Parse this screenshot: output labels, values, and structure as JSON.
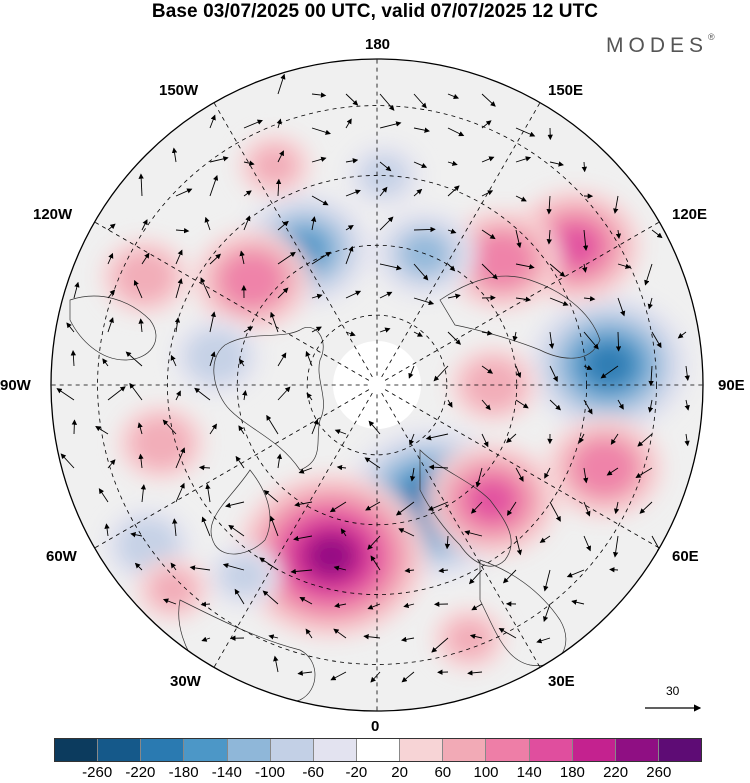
{
  "title": "Base 03/07/2025 00 UTC, valid 07/07/2025 12 UTC",
  "brand": {
    "name": "MODES",
    "mark": "®"
  },
  "map": {
    "projection": "north polar stereographic",
    "longitude_labels": {
      "lon_180": "180",
      "lon_150e": "150E",
      "lon_120e": "120E",
      "lon_90e": "90E",
      "lon_60e": "60E",
      "lon_30e": "30E",
      "lon_0": "0",
      "lon_30w": "30W",
      "lon_60w": "60W",
      "lon_90w": "90W",
      "lon_120w": "120W",
      "lon_150w": "150W"
    },
    "reference_vector_label": "30"
  },
  "colorbar": {
    "colors": [
      "#0c3b5e",
      "#15598a",
      "#2a7ab1",
      "#4c97c7",
      "#8fb7d9",
      "#c3d0e6",
      "#e3e3f0",
      "#ffffff",
      "#f7d4d6",
      "#f2aab6",
      "#ee7ea7",
      "#e04e9e",
      "#c4228f",
      "#8f0f83",
      "#5e0c75"
    ],
    "tick_labels": [
      "-260",
      "-220",
      "-180",
      "-140",
      "-100",
      "-60",
      "-20",
      "20",
      "60",
      "100",
      "140",
      "180",
      "220",
      "260"
    ]
  },
  "anomalies": [
    {
      "lon": 25,
      "lat": 62,
      "value": -200
    },
    {
      "lon": -15,
      "lat": 52,
      "value": 220
    },
    {
      "lon": 45,
      "lat": 55,
      "value": 140
    },
    {
      "lon": 95,
      "lat": 40,
      "value": -180
    },
    {
      "lon": 70,
      "lat": 38,
      "value": 120
    },
    {
      "lon": 125,
      "lat": 38,
      "value": 140
    },
    {
      "lon": 135,
      "lat": 52,
      "value": 120
    },
    {
      "lon": 160,
      "lat": 60,
      "value": -100
    },
    {
      "lon": 178,
      "lat": 45,
      "value": -60
    },
    {
      "lon": -152,
      "lat": 57,
      "value": -140
    },
    {
      "lon": -130,
      "lat": 55,
      "value": 120
    },
    {
      "lon": -115,
      "lat": 35,
      "value": 80
    },
    {
      "lon": -100,
      "lat": 55,
      "value": -80
    },
    {
      "lon": -75,
      "lat": 42,
      "value": 80
    },
    {
      "lon": -55,
      "lat": 30,
      "value": -80
    },
    {
      "lon": 90,
      "lat": 65,
      "value": 80
    },
    {
      "lon": -155,
      "lat": 38,
      "value": 60
    },
    {
      "lon": -35,
      "lat": 40,
      "value": -60
    },
    {
      "lon": 20,
      "lat": 32,
      "value": 60
    },
    {
      "lon": -45,
      "lat": 28,
      "value": 60
    }
  ]
}
